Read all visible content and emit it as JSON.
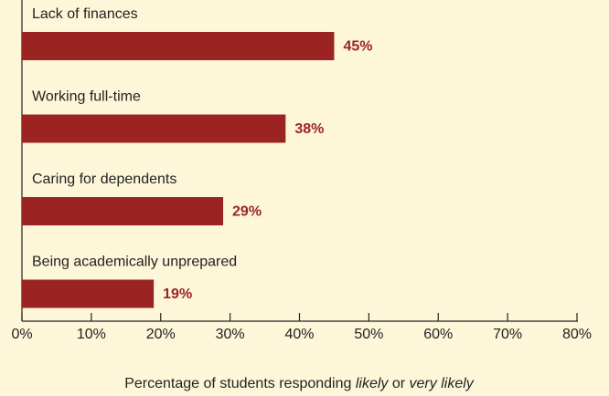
{
  "chart_data": {
    "type": "bar",
    "orientation": "horizontal",
    "categories": [
      "Lack of finances",
      "Working full-time",
      "Caring for dependents",
      "Being academically unprepared"
    ],
    "values": [
      45,
      38,
      29,
      19
    ],
    "value_labels": [
      "45%",
      "38%",
      "29%",
      "19%"
    ],
    "color": "#9b2423",
    "xlim": [
      0,
      80
    ],
    "xticks": [
      {
        "value": 0,
        "label": "0%"
      },
      {
        "value": 10,
        "label": "10%"
      },
      {
        "value": 20,
        "label": "20%"
      },
      {
        "value": 30,
        "label": "30%"
      },
      {
        "value": 40,
        "label": "40%"
      },
      {
        "value": 50,
        "label": "50%"
      },
      {
        "value": 60,
        "label": "60%"
      },
      {
        "value": 70,
        "label": "70%"
      },
      {
        "value": 80,
        "label": "80%"
      }
    ],
    "xlabel": [
      "Percentage of students responding ",
      "likely",
      " or ",
      "very likely"
    ],
    "grid": false
  }
}
